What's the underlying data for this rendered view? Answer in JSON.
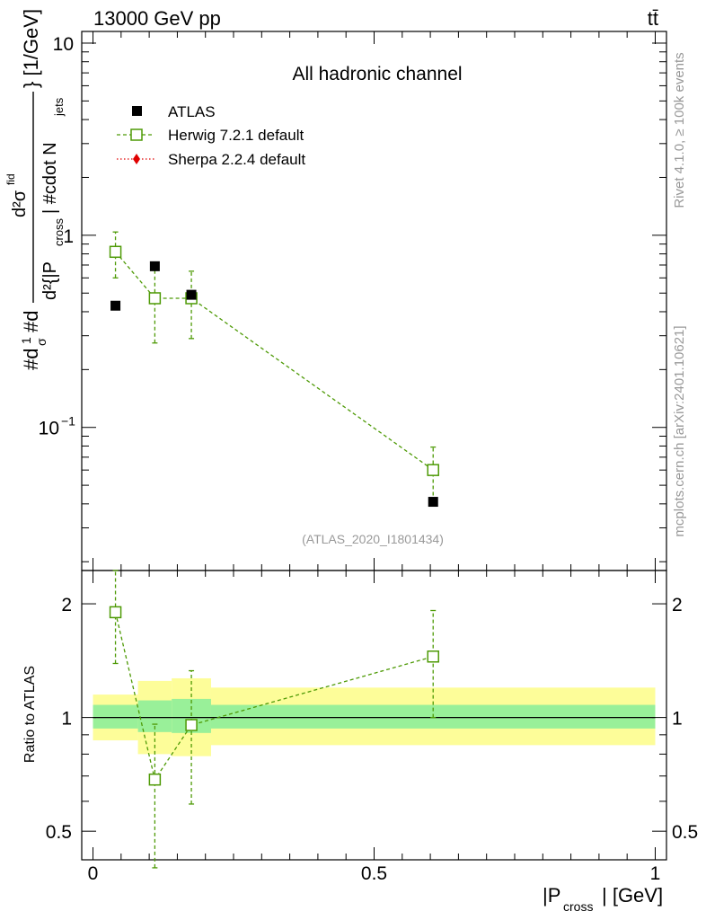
{
  "header": {
    "left_title": "13000 GeV pp",
    "right_title": "tt̄"
  },
  "chart_data": [
    {
      "type": "scatter",
      "title": "All hadronic channel",
      "ylabel": "#d¹/σ #d d²σ^{fid} / d²{|P_cross| #cdot N_jets} [1/GeV]",
      "ylabel_parts": {
        "numerator": "d²σ",
        "numerator_sup": "fid",
        "prefix": "#d",
        "prefix_frac_num": "1",
        "prefix_frac_den": "σ",
        "prefix_mid": "#d",
        "denominator": "d²{|P",
        "denominator_sub": "cross",
        "denominator_tail": "| #cdot N",
        "denominator_tail_sub": "jets",
        "unit": "} [1/GeV]"
      },
      "yscale": "log",
      "ylim": [
        0.018,
        11.5
      ],
      "xlim": [
        -0.02,
        1.02
      ],
      "yticks": [
        {
          "value": 10,
          "label": "10"
        },
        {
          "value": 1,
          "label": "1"
        },
        {
          "value": 0.1,
          "label": "10",
          "sup": "−1"
        }
      ],
      "legend_position": "top-left",
      "series": [
        {
          "name": "ATLAS",
          "marker": "filled-square",
          "color": "#000000",
          "points": [
            {
              "x": 0.04,
              "y": 0.43
            },
            {
              "x": 0.11,
              "y": 0.69
            },
            {
              "x": 0.175,
              "y": 0.49
            },
            {
              "x": 0.605,
              "y": 0.041
            }
          ]
        },
        {
          "name": "Herwig 7.2.1 default",
          "marker": "open-square",
          "linestyle": "dashed",
          "color": "#4e9a06",
          "points": [
            {
              "x": 0.04,
              "y": 0.82,
              "err_lo": 0.6,
              "err_hi": 1.04
            },
            {
              "x": 0.11,
              "y": 0.47,
              "err_lo": 0.275,
              "err_hi": 0.665
            },
            {
              "x": 0.175,
              "y": 0.47,
              "err_lo": 0.29,
              "err_hi": 0.65
            },
            {
              "x": 0.605,
              "y": 0.06,
              "err_lo": 0.041,
              "err_hi": 0.079
            }
          ]
        },
        {
          "name": "Sherpa 2.2.4 default",
          "marker": "filled-diamond",
          "linestyle": "dotted",
          "color": "#e00000",
          "points": []
        }
      ],
      "annotation": "(ATLAS_2020_I1801434)"
    },
    {
      "type": "scatter",
      "ylabel": "Ratio to ATLAS",
      "xlabel": "|P_cross| [GeV]",
      "xlabel_parts": {
        "main": "|P",
        "sub": "cross",
        "tail": "| [GeV]"
      },
      "yscale": "log",
      "ylim": [
        0.42,
        2.45
      ],
      "xlim": [
        -0.02,
        1.02
      ],
      "xticks": [
        {
          "value": 0,
          "label": "0"
        },
        {
          "value": 0.5,
          "label": "0.5"
        },
        {
          "value": 1,
          "label": "1"
        }
      ],
      "yticks": [
        {
          "value": 2,
          "label": "2"
        },
        {
          "value": 1,
          "label": "1"
        },
        {
          "value": 0.5,
          "label": "0.5"
        }
      ],
      "bands": [
        {
          "x0": 0.0,
          "x1": 0.08,
          "inner": [
            0.935,
            1.08
          ],
          "outer": [
            0.87,
            1.15
          ]
        },
        {
          "x0": 0.08,
          "x1": 0.14,
          "inner": [
            0.915,
            1.11
          ],
          "outer": [
            0.8,
            1.25
          ]
        },
        {
          "x0": 0.14,
          "x1": 0.21,
          "inner": [
            0.91,
            1.12
          ],
          "outer": [
            0.79,
            1.27
          ]
        },
        {
          "x0": 0.21,
          "x1": 1.0,
          "inner": [
            0.935,
            1.08
          ],
          "outer": [
            0.845,
            1.2
          ]
        }
      ],
      "band_colors": {
        "inner": "#99f099",
        "outer": "#fdfd99"
      },
      "series": [
        {
          "name": "Herwig 7.2.1 default",
          "color": "#4e9a06",
          "points": [
            {
              "x": 0.04,
              "y": 1.9,
              "err_lo": 1.39,
              "err_hi": 2.45
            },
            {
              "x": 0.11,
              "y": 0.685,
              "err_lo": 0.4,
              "err_hi": 0.96
            },
            {
              "x": 0.175,
              "y": 0.955,
              "err_lo": 0.59,
              "err_hi": 1.33
            },
            {
              "x": 0.605,
              "y": 1.45,
              "err_lo": 1.0,
              "err_hi": 1.92
            }
          ]
        }
      ]
    }
  ],
  "side_labels": {
    "rivet": "Rivet 4.1.0, ≥ 100k events",
    "mcplots": "mcplots.cern.ch [arXiv:2401.10621]"
  }
}
